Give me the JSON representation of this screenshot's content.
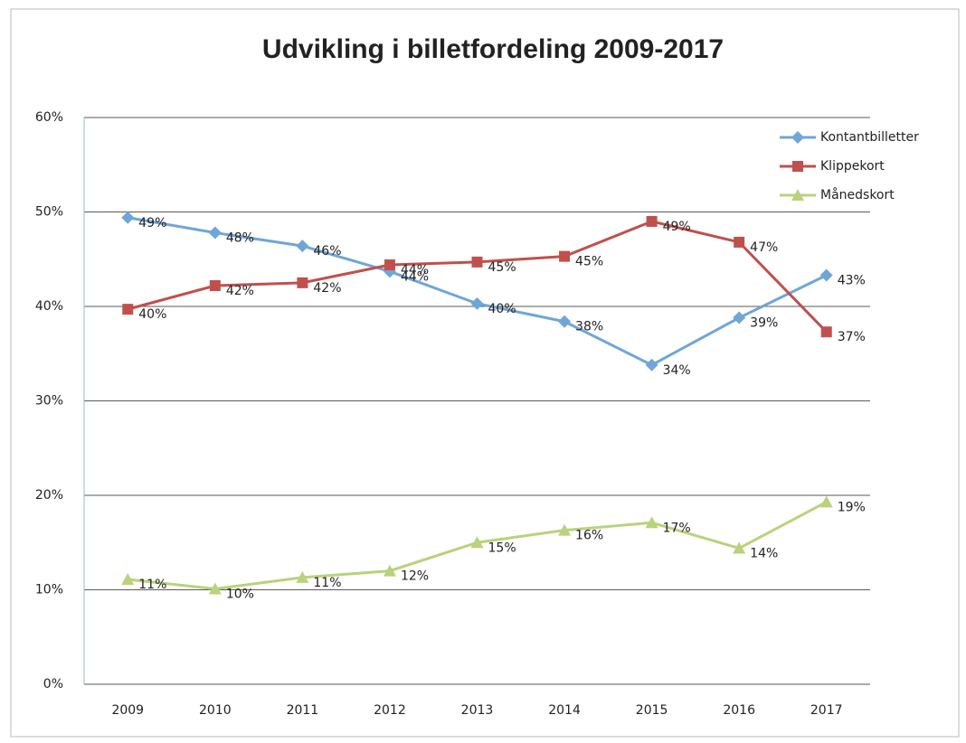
{
  "chart_data": {
    "type": "line",
    "title": "Udvikling i billetfordeling 2009-2017",
    "categories": [
      "2009",
      "2010",
      "2011",
      "2012",
      "2013",
      "2014",
      "2015",
      "2016",
      "2017"
    ],
    "series": [
      {
        "name": "Kontantbilletter",
        "color": "#6fa6d6",
        "marker": "diamond",
        "values": [
          49.4,
          47.8,
          46.4,
          43.7,
          40.3,
          38.4,
          33.8,
          38.8,
          43.3
        ],
        "value_labels": [
          "49%",
          "48%",
          "46%",
          "44%",
          "40%",
          "38%",
          "34%",
          "39%",
          "43%"
        ]
      },
      {
        "name": "Klippekort",
        "color": "#c0504d",
        "marker": "square",
        "values": [
          39.7,
          42.2,
          42.5,
          44.4,
          44.7,
          45.3,
          49.0,
          46.8,
          37.3
        ],
        "value_labels": [
          "40%",
          "42%",
          "42%",
          "44%",
          "45%",
          "45%",
          "49%",
          "47%",
          "37%"
        ]
      },
      {
        "name": "Månedskort",
        "color": "#b9d27c",
        "marker": "triangle",
        "values": [
          11.1,
          10.1,
          11.3,
          12.0,
          15.0,
          16.3,
          17.1,
          14.4,
          19.3
        ],
        "value_labels": [
          "11%",
          "10%",
          "11%",
          "12%",
          "15%",
          "16%",
          "17%",
          "14%",
          "19%"
        ]
      }
    ],
    "ylim": [
      0,
      60
    ],
    "yticks": [
      {
        "value": 0,
        "label": "0%"
      },
      {
        "value": 10,
        "label": "10%"
      },
      {
        "value": 20,
        "label": "20%"
      },
      {
        "value": 30,
        "label": "30%"
      },
      {
        "value": 40,
        "label": "40%"
      },
      {
        "value": 50,
        "label": "50%"
      },
      {
        "value": 60,
        "label": "60%"
      }
    ],
    "grid": true,
    "legend": "top-right"
  }
}
